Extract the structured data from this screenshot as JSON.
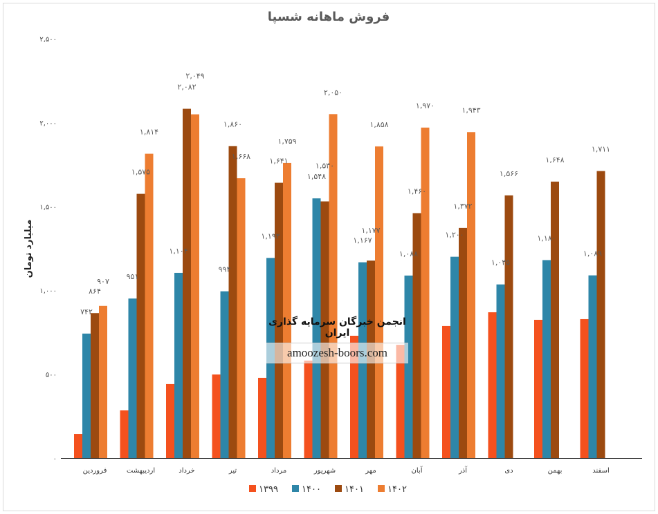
{
  "chart_data": {
    "type": "bar",
    "title": "فروش ماهانه شسپا",
    "ylabel": "میلیارد تومان",
    "xlabel": "",
    "ylim": [
      0,
      2500
    ],
    "yticks": [
      0,
      500,
      1000,
      1500,
      2000,
      2500
    ],
    "ytick_labels": [
      "۰",
      "۵۰۰",
      "۱,۰۰۰",
      "۱,۵۰۰",
      "۲,۰۰۰",
      "۲,۵۰۰"
    ],
    "categories": [
      "فروردین",
      "اردیبهشت",
      "خرداد",
      "تیر",
      "مرداد",
      "شهریور",
      "مهر",
      "آبان",
      "آذر",
      "دی",
      "بهمن",
      "اسفند"
    ],
    "legend_position": "bottom",
    "grid": false,
    "series": [
      {
        "name": "۱۳۹۹",
        "color": "#f4511e",
        "labeled": false,
        "values": [
          144,
          284,
          441,
          498,
          478,
          581,
          729,
          675,
          787,
          869,
          824,
          828
        ]
      },
      {
        "name": "۱۴۰۰",
        "color": "#2e86a8",
        "labeled": true,
        "values": [
          742,
          951,
          1104,
          994,
          1193,
          1548,
          1167,
          1088,
          1200,
          1035,
          1180,
          1089
        ]
      },
      {
        "name": "۱۴۰۱",
        "color": "#9c4a10",
        "labeled": true,
        "values": [
          864,
          1575,
          2082,
          1860,
          1641,
          1530,
          1177,
          1460,
          1372,
          1566,
          1648,
          1711
        ]
      },
      {
        "name": "۱۴۰۲",
        "color": "#ed7d31",
        "labeled": true,
        "values": [
          907,
          1814,
          2049,
          1668,
          1759,
          2050,
          1858,
          1970,
          1943,
          null,
          null,
          null
        ]
      }
    ]
  },
  "watermark": {
    "org": "انجمن خبرگان سرمایه گذاری ایران",
    "site": "amoozesh-boors.com"
  }
}
